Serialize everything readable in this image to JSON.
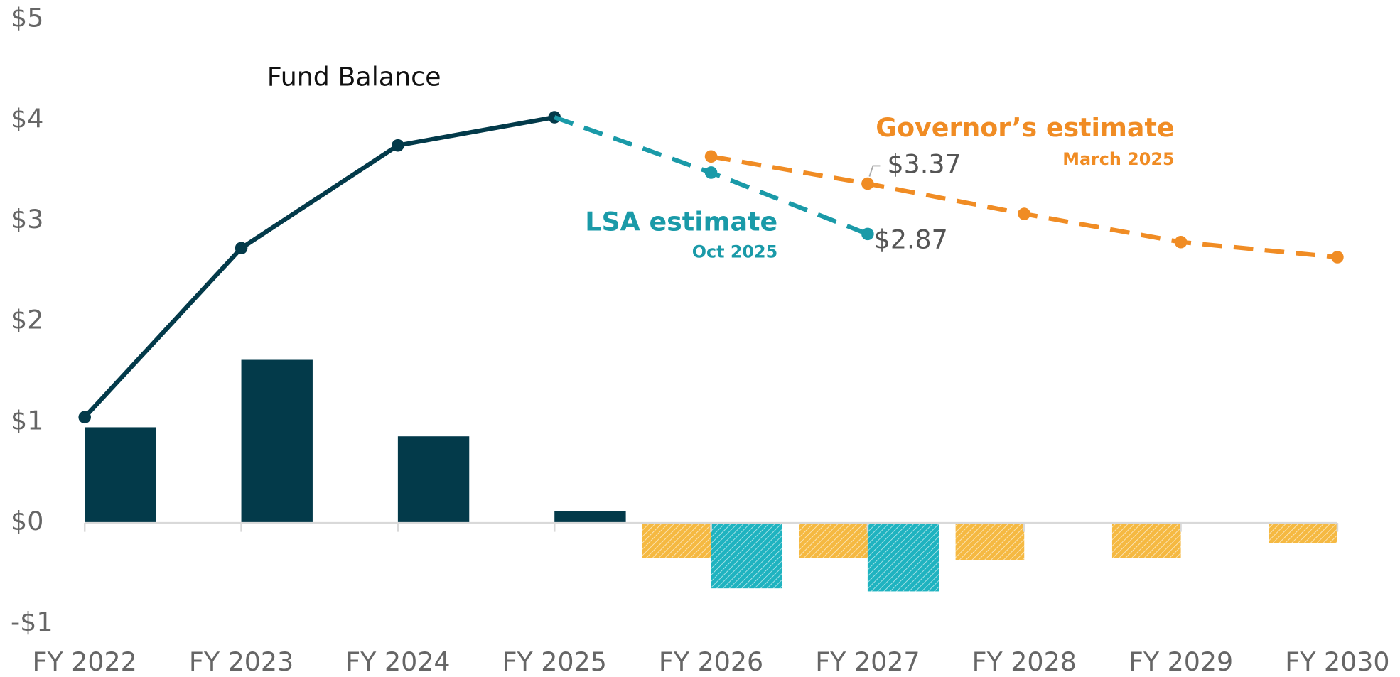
{
  "chart_data": {
    "type": "bar-line",
    "categories": [
      "FY 2022",
      "FY 2023",
      "FY 2024",
      "FY 2025",
      "FY 2026",
      "FY 2027",
      "FY 2028",
      "FY 2029",
      "FY 2030"
    ],
    "ylim": [
      -1,
      5
    ],
    "yticks": [
      {
        "value": -1,
        "label": "-$1"
      },
      {
        "value": 0,
        "label": "$0"
      },
      {
        "value": 1,
        "label": "$1"
      },
      {
        "value": 2,
        "label": "$2"
      },
      {
        "value": 3,
        "label": "$3"
      },
      {
        "value": 4,
        "label": "$4"
      },
      {
        "value": 5,
        "label": "$5"
      }
    ],
    "annotations": [
      "Fund Balance"
    ],
    "lines": [
      {
        "name": "Fund Balance",
        "color": "#033a4a",
        "dashed": false,
        "values": [
          1.05,
          2.73,
          3.75,
          4.03,
          null,
          null,
          null,
          null,
          null
        ]
      },
      {
        "name": "LSA estimate",
        "subtitle": "Oct 2025",
        "color": "#1a9aa8",
        "dashed": true,
        "values": [
          null,
          null,
          null,
          4.03,
          3.48,
          2.87,
          null,
          null,
          null
        ],
        "value_labels": [
          null,
          null,
          null,
          null,
          null,
          "$2.87",
          null,
          null,
          null
        ]
      },
      {
        "name": "Governor’s estimate",
        "subtitle": "March 2025",
        "color": "#f08c24",
        "dashed": true,
        "values": [
          null,
          null,
          null,
          null,
          3.64,
          3.37,
          3.07,
          2.79,
          2.64
        ],
        "value_labels": [
          null,
          null,
          null,
          null,
          null,
          "$3.37",
          null,
          null,
          null
        ]
      }
    ],
    "bars": [
      {
        "color": "#033a4a",
        "hatched": false,
        "side": "right",
        "values": [
          0.95,
          1.62,
          0.86,
          0.12,
          null,
          null,
          null,
          null,
          null
        ]
      },
      {
        "color": "#f5b942",
        "hatched": true,
        "side": "left",
        "values": [
          null,
          null,
          null,
          null,
          -0.35,
          -0.35,
          -0.37,
          -0.35,
          -0.2
        ]
      },
      {
        "color": "#1fb3c0",
        "hatched": true,
        "side": "right",
        "values": [
          null,
          null,
          null,
          null,
          -0.65,
          -0.68,
          null,
          null,
          null
        ]
      }
    ]
  }
}
